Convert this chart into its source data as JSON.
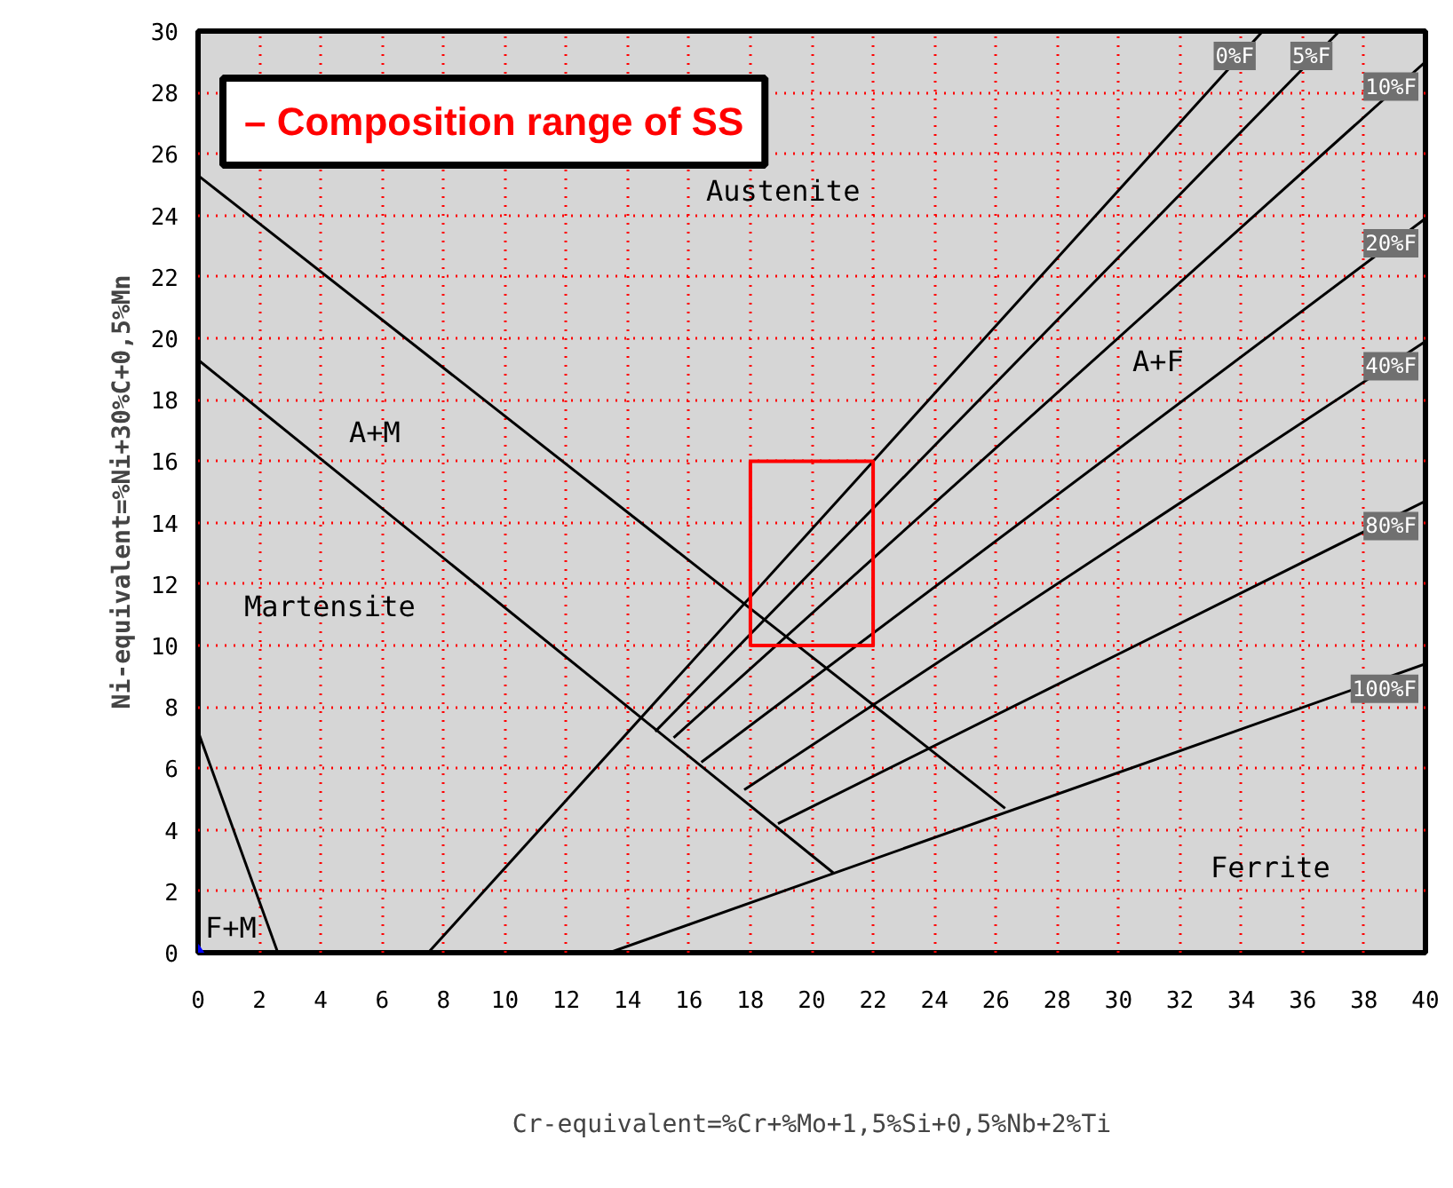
{
  "chart_data": {
    "type": "line",
    "xlabel": "Cr-equivalent=%Cr+%Mo+1,5%Si+0,5%Nb+2%Ti",
    "ylabel": "Ni-equivalent=%Ni+30%C+0,5%Mn",
    "xlim": [
      0,
      40
    ],
    "ylim": [
      0,
      30
    ],
    "xticks": [
      0,
      2,
      4,
      6,
      8,
      10,
      12,
      14,
      16,
      18,
      20,
      22,
      24,
      26,
      28,
      30,
      32,
      34,
      36,
      38,
      40
    ],
    "yticks": [
      0,
      2,
      4,
      6,
      8,
      10,
      12,
      14,
      16,
      18,
      20,
      22,
      24,
      26,
      28,
      30
    ],
    "grid": true,
    "marker": "none",
    "line_style": "solid",
    "series": [
      {
        "color": "#000000",
        "x": [
          0,
          26.3
        ],
        "values": [
          25.3,
          4.7
        ]
      },
      {
        "color": "#000000",
        "x": [
          0,
          20.7
        ],
        "values": [
          19.3,
          2.6
        ]
      },
      {
        "color": "#000000",
        "x": [
          0,
          2.6
        ],
        "values": [
          7.2,
          0
        ]
      },
      {
        "name": "0%F",
        "color": "#000000",
        "x": [
          7.5,
          34.7
        ],
        "values": [
          0,
          30
        ]
      },
      {
        "name": "5%F",
        "color": "#000000",
        "x": [
          14.9,
          37.2
        ],
        "values": [
          7.2,
          30
        ]
      },
      {
        "name": "10%F",
        "color": "#000000",
        "x": [
          15.5,
          40
        ],
        "values": [
          7.0,
          29.0
        ]
      },
      {
        "name": "20%F",
        "color": "#000000",
        "x": [
          16.4,
          40
        ],
        "values": [
          6.2,
          23.9
        ]
      },
      {
        "name": "40%F",
        "color": "#000000",
        "x": [
          17.8,
          40
        ],
        "values": [
          5.3,
          19.9
        ]
      },
      {
        "name": "80%F",
        "color": "#000000",
        "x": [
          18.9,
          40
        ],
        "values": [
          4.2,
          14.7
        ]
      },
      {
        "name": "100%F",
        "color": "#000000",
        "x": [
          13.4,
          40
        ],
        "values": [
          0,
          9.4
        ]
      },
      {
        "color": "#ff0000",
        "x": [
          18,
          22,
          22,
          18
        ],
        "values": [
          10,
          10,
          16,
          16
        ]
      },
      {
        "color": "#ff0000",
        "x": [
          18,
          18
        ],
        "values": [
          16,
          10
        ]
      },
      {
        "type": "scatter",
        "marker": "diamond",
        "color": "#0000ff",
        "x": [
          0
        ],
        "values": [
          0
        ]
      }
    ],
    "annotations": [
      "– Composition range of SS",
      "Austenite",
      "A+M",
      "Martensite",
      "A+F",
      "Ferrite",
      "F+M"
    ]
  }
}
